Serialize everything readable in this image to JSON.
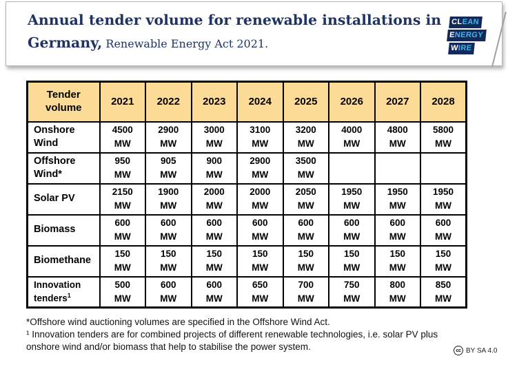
{
  "header": {
    "title_line1": "Annual tender volume for renewable installations in",
    "title_line2_bold": "Germany,",
    "title_line2_rest": " Renewable Energy Act 2021.",
    "logo": {
      "rows": [
        {
          "white": "CL",
          "blue": "EAN"
        },
        {
          "white": "E",
          "blue": "NERGY"
        },
        {
          "white": "W",
          "blue": "IRE"
        }
      ]
    }
  },
  "chart_data": {
    "type": "table",
    "title": "Annual tender volume for renewable installations in Germany, Renewable Energy Act 2021",
    "corner_header": "Tender volume",
    "unit": "MW",
    "categories": [
      "2021",
      "2022",
      "2023",
      "2024",
      "2025",
      "2026",
      "2027",
      "2028"
    ],
    "rows": [
      {
        "label": "Onshore Wind",
        "sup": "",
        "values": [
          "4500",
          "2900",
          "3000",
          "3100",
          "3200",
          "4000",
          "4800",
          "5800"
        ]
      },
      {
        "label": "Offshore Wind*",
        "sup": "",
        "values": [
          "950",
          "905",
          "900",
          "2900",
          "3500",
          "",
          "",
          ""
        ]
      },
      {
        "label": "Solar PV",
        "sup": "",
        "values": [
          "2150",
          "1900",
          "2000",
          "2000",
          "2050",
          "1950",
          "1950",
          "1950"
        ]
      },
      {
        "label": "Biomass",
        "sup": "",
        "values": [
          "600",
          "600",
          "600",
          "600",
          "600",
          "600",
          "600",
          "600"
        ]
      },
      {
        "label": "Biomethane",
        "sup": "",
        "values": [
          "150",
          "150",
          "150",
          "150",
          "150",
          "150",
          "150",
          "150"
        ]
      },
      {
        "label": "Innovation tenders",
        "sup": "1",
        "values": [
          "500",
          "600",
          "600",
          "650",
          "700",
          "750",
          "800",
          "850"
        ]
      }
    ],
    "layout": {
      "header_bg": "#FBDB96",
      "grid": true,
      "empty_cells": "Offshore Wind 2026-2028"
    }
  },
  "footnotes": {
    "line1": "*Offshore wind auctioning volumes are specified in the Offshore Wind Act.",
    "line2": "¹ Innovation tenders are for combined projects of different renewable technologies, i.e. solar PV plus onshore wind and/or biomass that help to stabilise the power system."
  },
  "license": {
    "cc": "cc",
    "text": "BY SA 4.0"
  },
  "colors": {
    "title_navy": "#1F3364",
    "table_header_bg": "#FBDB96",
    "logo_navy": "#13295B",
    "logo_blue": "#41B6E8",
    "border_black": "#000000"
  }
}
